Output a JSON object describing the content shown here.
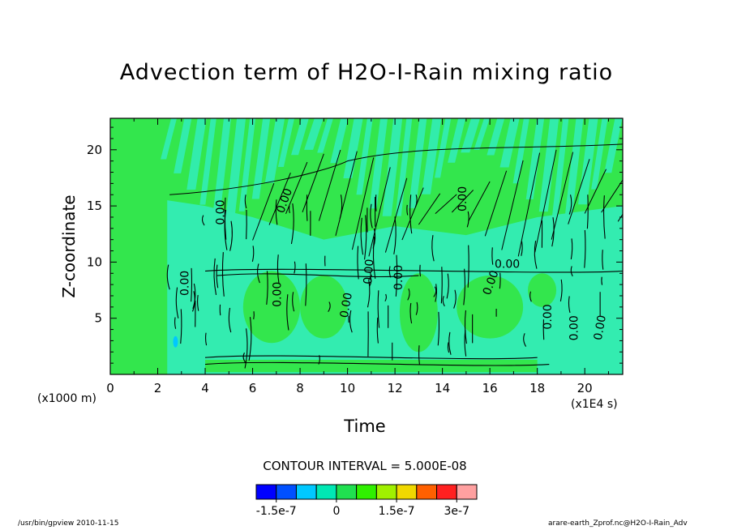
{
  "chart_data": {
    "type": "heatmap",
    "title": "Advection term of H2O-I-Rain mixing ratio",
    "xlabel": "Time",
    "ylabel": "Z-coordinate",
    "x_unit": "(x1E4 s)",
    "y_unit": "(x1000 m)",
    "xlim": [
      0,
      21.6
    ],
    "ylim": [
      0,
      22.8
    ],
    "x_ticks": [
      "0",
      "2",
      "4",
      "6",
      "8",
      "10",
      "12",
      "14",
      "16",
      "18",
      "20"
    ],
    "y_ticks": [
      "5",
      "10",
      "15",
      "20"
    ],
    "contour_interval_text": "CONTOUR INTERVAL = 5.000E-08",
    "contour_labels": [
      "0.00",
      "0.00",
      "0.00",
      "0.00",
      "0.00",
      "0.00",
      "0.00",
      "0.00",
      "0.00",
      "0.00",
      "0.00",
      "0.00",
      "0.00"
    ],
    "colorbar": {
      "colors": [
        "#0000ff",
        "#0050ff",
        "#00c8ff",
        "#00e8b4",
        "#20e050",
        "#30f000",
        "#a0f000",
        "#f0d800",
        "#ff6000",
        "#ff2020",
        "#ffa0a0"
      ],
      "tick_labels": [
        "-1.5e-7",
        "0",
        "1.5e-7",
        "3e-7"
      ]
    },
    "colors": {
      "background_zero": "#33e64d",
      "weak_negative": "#33ecb0",
      "contour_line": "#000000"
    }
  },
  "footer": {
    "left": "/usr/bin/gpview   2010-11-15",
    "right": "arare-earth_Zprof.nc@H2O-I-Rain_Adv"
  }
}
